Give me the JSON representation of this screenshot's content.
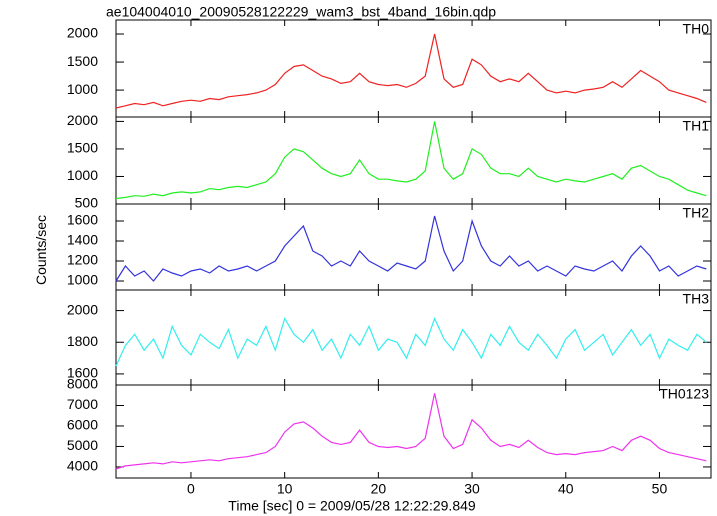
{
  "chart_data": {
    "type": "line",
    "title": "ae104004010_20090528122229_wam3_bst_4band_16bin.qdp",
    "xlabel": "Time [sec] 0 = 2009/05/28 12:22:29.849",
    "ylabel": "Counts/sec",
    "xlim": [
      -8,
      55.5
    ],
    "xticks": [
      0,
      10,
      20,
      30,
      40,
      50
    ],
    "x": [
      -8,
      -7,
      -6,
      -5,
      -4,
      -3,
      -2,
      -1,
      0,
      1,
      2,
      3,
      4,
      5,
      6,
      7,
      8,
      9,
      10,
      11,
      12,
      13,
      14,
      15,
      16,
      17,
      18,
      19,
      20,
      21,
      22,
      23,
      24,
      25,
      26,
      27,
      28,
      29,
      30,
      31,
      32,
      33,
      34,
      35,
      36,
      37,
      38,
      39,
      40,
      41,
      42,
      43,
      44,
      45,
      46,
      47,
      48,
      49,
      50,
      51,
      52,
      53,
      54,
      55
    ],
    "panels": [
      {
        "name": "TH0",
        "color": "#ee2222",
        "ylim": [
          520,
          2250
        ],
        "yticks": [
          1000,
          1500,
          2000
        ],
        "values": [
          680,
          720,
          760,
          740,
          780,
          720,
          760,
          800,
          820,
          800,
          850,
          830,
          880,
          900,
          920,
          950,
          1000,
          1100,
          1300,
          1420,
          1450,
          1350,
          1250,
          1200,
          1120,
          1150,
          1300,
          1150,
          1100,
          1080,
          1100,
          1050,
          1120,
          1250,
          2000,
          1200,
          1050,
          1100,
          1550,
          1450,
          1250,
          1150,
          1200,
          1150,
          1300,
          1150,
          1000,
          950,
          980,
          950,
          1000,
          1020,
          1050,
          1150,
          1050,
          1200,
          1350,
          1250,
          1150,
          1000,
          950,
          900,
          850,
          780
        ]
      },
      {
        "name": "TH1",
        "color": "#22ee22",
        "ylim": [
          500,
          2080
        ],
        "yticks": [
          500,
          1000,
          1500,
          2000
        ],
        "values": [
          600,
          620,
          650,
          640,
          680,
          650,
          700,
          720,
          700,
          720,
          780,
          760,
          800,
          820,
          800,
          850,
          900,
          1050,
          1350,
          1500,
          1450,
          1300,
          1150,
          1050,
          1000,
          1050,
          1300,
          1050,
          950,
          950,
          920,
          900,
          950,
          1100,
          2000,
          1150,
          950,
          1050,
          1500,
          1400,
          1150,
          1050,
          1050,
          1000,
          1150,
          1000,
          950,
          900,
          950,
          920,
          900,
          950,
          1000,
          1050,
          950,
          1150,
          1200,
          1100,
          1000,
          950,
          850,
          750,
          700,
          650
        ]
      },
      {
        "name": "TH2",
        "color": "#3333dd",
        "ylim": [
          910,
          1770
        ],
        "yticks": [
          1000,
          1200,
          1400,
          1600
        ],
        "values": [
          1000,
          1150,
          1050,
          1100,
          1000,
          1120,
          1080,
          1050,
          1100,
          1120,
          1080,
          1150,
          1100,
          1120,
          1150,
          1100,
          1150,
          1200,
          1350,
          1450,
          1550,
          1300,
          1250,
          1150,
          1200,
          1150,
          1300,
          1200,
          1150,
          1100,
          1180,
          1150,
          1120,
          1200,
          1650,
          1300,
          1100,
          1200,
          1600,
          1350,
          1200,
          1150,
          1250,
          1150,
          1200,
          1100,
          1150,
          1100,
          1050,
          1150,
          1120,
          1100,
          1150,
          1200,
          1100,
          1250,
          1350,
          1250,
          1100,
          1150,
          1050,
          1100,
          1150,
          1120
        ]
      },
      {
        "name": "TH3",
        "color": "#33eeee",
        "ylim": [
          1530,
          2130
        ],
        "yticks": [
          1600,
          1800,
          2000
        ],
        "values": [
          1650,
          1780,
          1850,
          1750,
          1820,
          1700,
          1900,
          1780,
          1720,
          1850,
          1800,
          1760,
          1880,
          1700,
          1820,
          1780,
          1900,
          1750,
          1950,
          1850,
          1800,
          1880,
          1750,
          1820,
          1700,
          1850,
          1780,
          1900,
          1750,
          1820,
          1800,
          1700,
          1850,
          1780,
          1950,
          1820,
          1750,
          1880,
          1800,
          1700,
          1850,
          1780,
          1900,
          1800,
          1750,
          1850,
          1780,
          1700,
          1820,
          1880,
          1750,
          1800,
          1850,
          1720,
          1800,
          1880,
          1780,
          1850,
          1700,
          1820,
          1780,
          1750,
          1850,
          1800
        ]
      },
      {
        "name": "TH0123",
        "color": "#ee33ee",
        "ylim": [
          3460,
          8000
        ],
        "yticks": [
          4000,
          5000,
          6000,
          7000,
          8000
        ],
        "values": [
          3900,
          4050,
          4100,
          4150,
          4200,
          4150,
          4250,
          4200,
          4250,
          4300,
          4350,
          4300,
          4400,
          4450,
          4500,
          4600,
          4700,
          5000,
          5700,
          6100,
          6200,
          5900,
          5500,
          5200,
          5100,
          5200,
          5800,
          5200,
          5000,
          4950,
          5000,
          4900,
          5000,
          5400,
          7600,
          5500,
          4900,
          5100,
          6300,
          5900,
          5300,
          5000,
          5100,
          4950,
          5300,
          4950,
          4700,
          4600,
          4650,
          4600,
          4700,
          4750,
          4800,
          5000,
          4800,
          5300,
          5500,
          5300,
          4900,
          4700,
          4600,
          4500,
          4400,
          4300
        ]
      }
    ]
  }
}
